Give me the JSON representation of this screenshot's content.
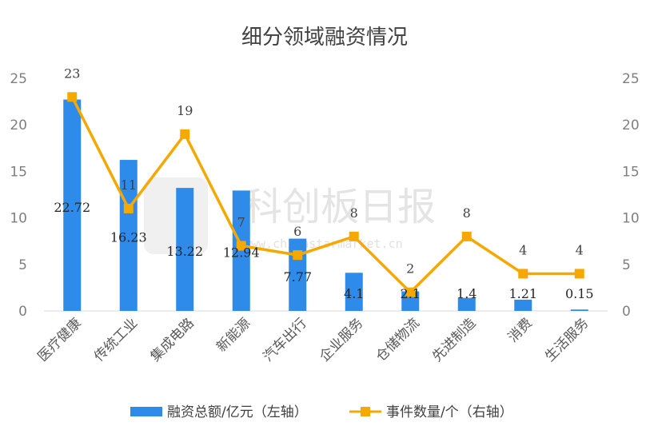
{
  "chart_data": {
    "type": "bar",
    "title": "细分领域融资情况",
    "categories": [
      "医疗健康",
      "传统工业",
      "集成电路",
      "新能源",
      "汽车出行",
      "企业服务",
      "仓储物流",
      "先进制造",
      "消费",
      "生活服务"
    ],
    "series": [
      {
        "name": "融资总额/亿元（左轴）",
        "type": "bar",
        "axis": "left",
        "color": "#2E8BEA",
        "values": [
          22.72,
          16.23,
          13.22,
          12.94,
          7.77,
          4.1,
          2.1,
          1.4,
          1.21,
          0.15
        ],
        "labels": [
          "22.72",
          "16.23",
          "13.22",
          "12.94",
          "7.77",
          "4.1",
          "2.1",
          "1.4",
          "1.21",
          "0.15"
        ]
      },
      {
        "name": "事件数量/个（右轴）",
        "type": "line",
        "axis": "right",
        "color": "#F5A800",
        "values": [
          23,
          11,
          19,
          7,
          6,
          8,
          2,
          8,
          4,
          4
        ],
        "labels": [
          "23",
          "11",
          "19",
          "7",
          "6",
          "8",
          "2",
          "8",
          "4",
          "4"
        ]
      }
    ],
    "ylim": [
      0,
      25
    ],
    "y2lim": [
      0,
      25
    ],
    "yticks": [
      "0",
      "5",
      "10",
      "15",
      "20",
      "25"
    ],
    "y2ticks": [
      "0",
      "5",
      "10",
      "15",
      "20",
      "25"
    ],
    "grid": false,
    "legend_position": "bottom"
  },
  "watermark": {
    "text": "科创板日报",
    "url": "www.chinastarmarket.cn"
  }
}
